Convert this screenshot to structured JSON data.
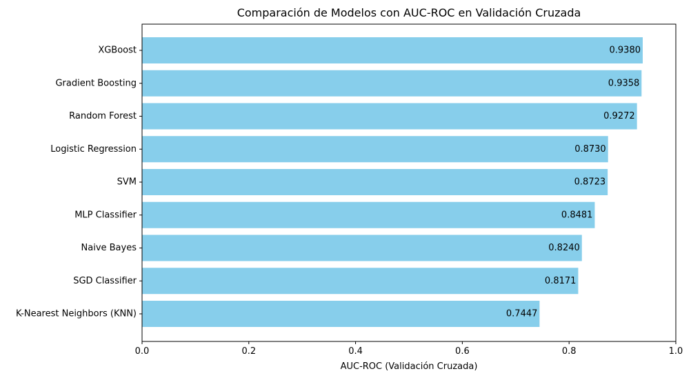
{
  "chart_data": {
    "type": "bar",
    "orientation": "horizontal",
    "title": "Comparación de Modelos con AUC-ROC en Validación Cruzada",
    "xlabel": "AUC-ROC (Validación Cruzada)",
    "ylabel": "",
    "xlim": [
      0.0,
      1.0
    ],
    "x_ticks": [
      "0.0",
      "0.2",
      "0.4",
      "0.6",
      "0.8",
      "1.0"
    ],
    "grid": false,
    "bar_color": "#87CEEB",
    "categories": [
      "XGBoost",
      "Gradient Boosting",
      "Random Forest",
      "Logistic Regression",
      "SVM",
      "MLP Classifier",
      "Naive Bayes",
      "SGD Classifier",
      "K-Nearest Neighbors (KNN)"
    ],
    "values": [
      0.938,
      0.9358,
      0.9272,
      0.873,
      0.8723,
      0.8481,
      0.824,
      0.8171,
      0.7447
    ],
    "data_labels": [
      "0.9380",
      "0.9358",
      "0.9272",
      "0.8730",
      "0.8723",
      "0.8481",
      "0.8240",
      "0.8171",
      "0.7447"
    ]
  }
}
